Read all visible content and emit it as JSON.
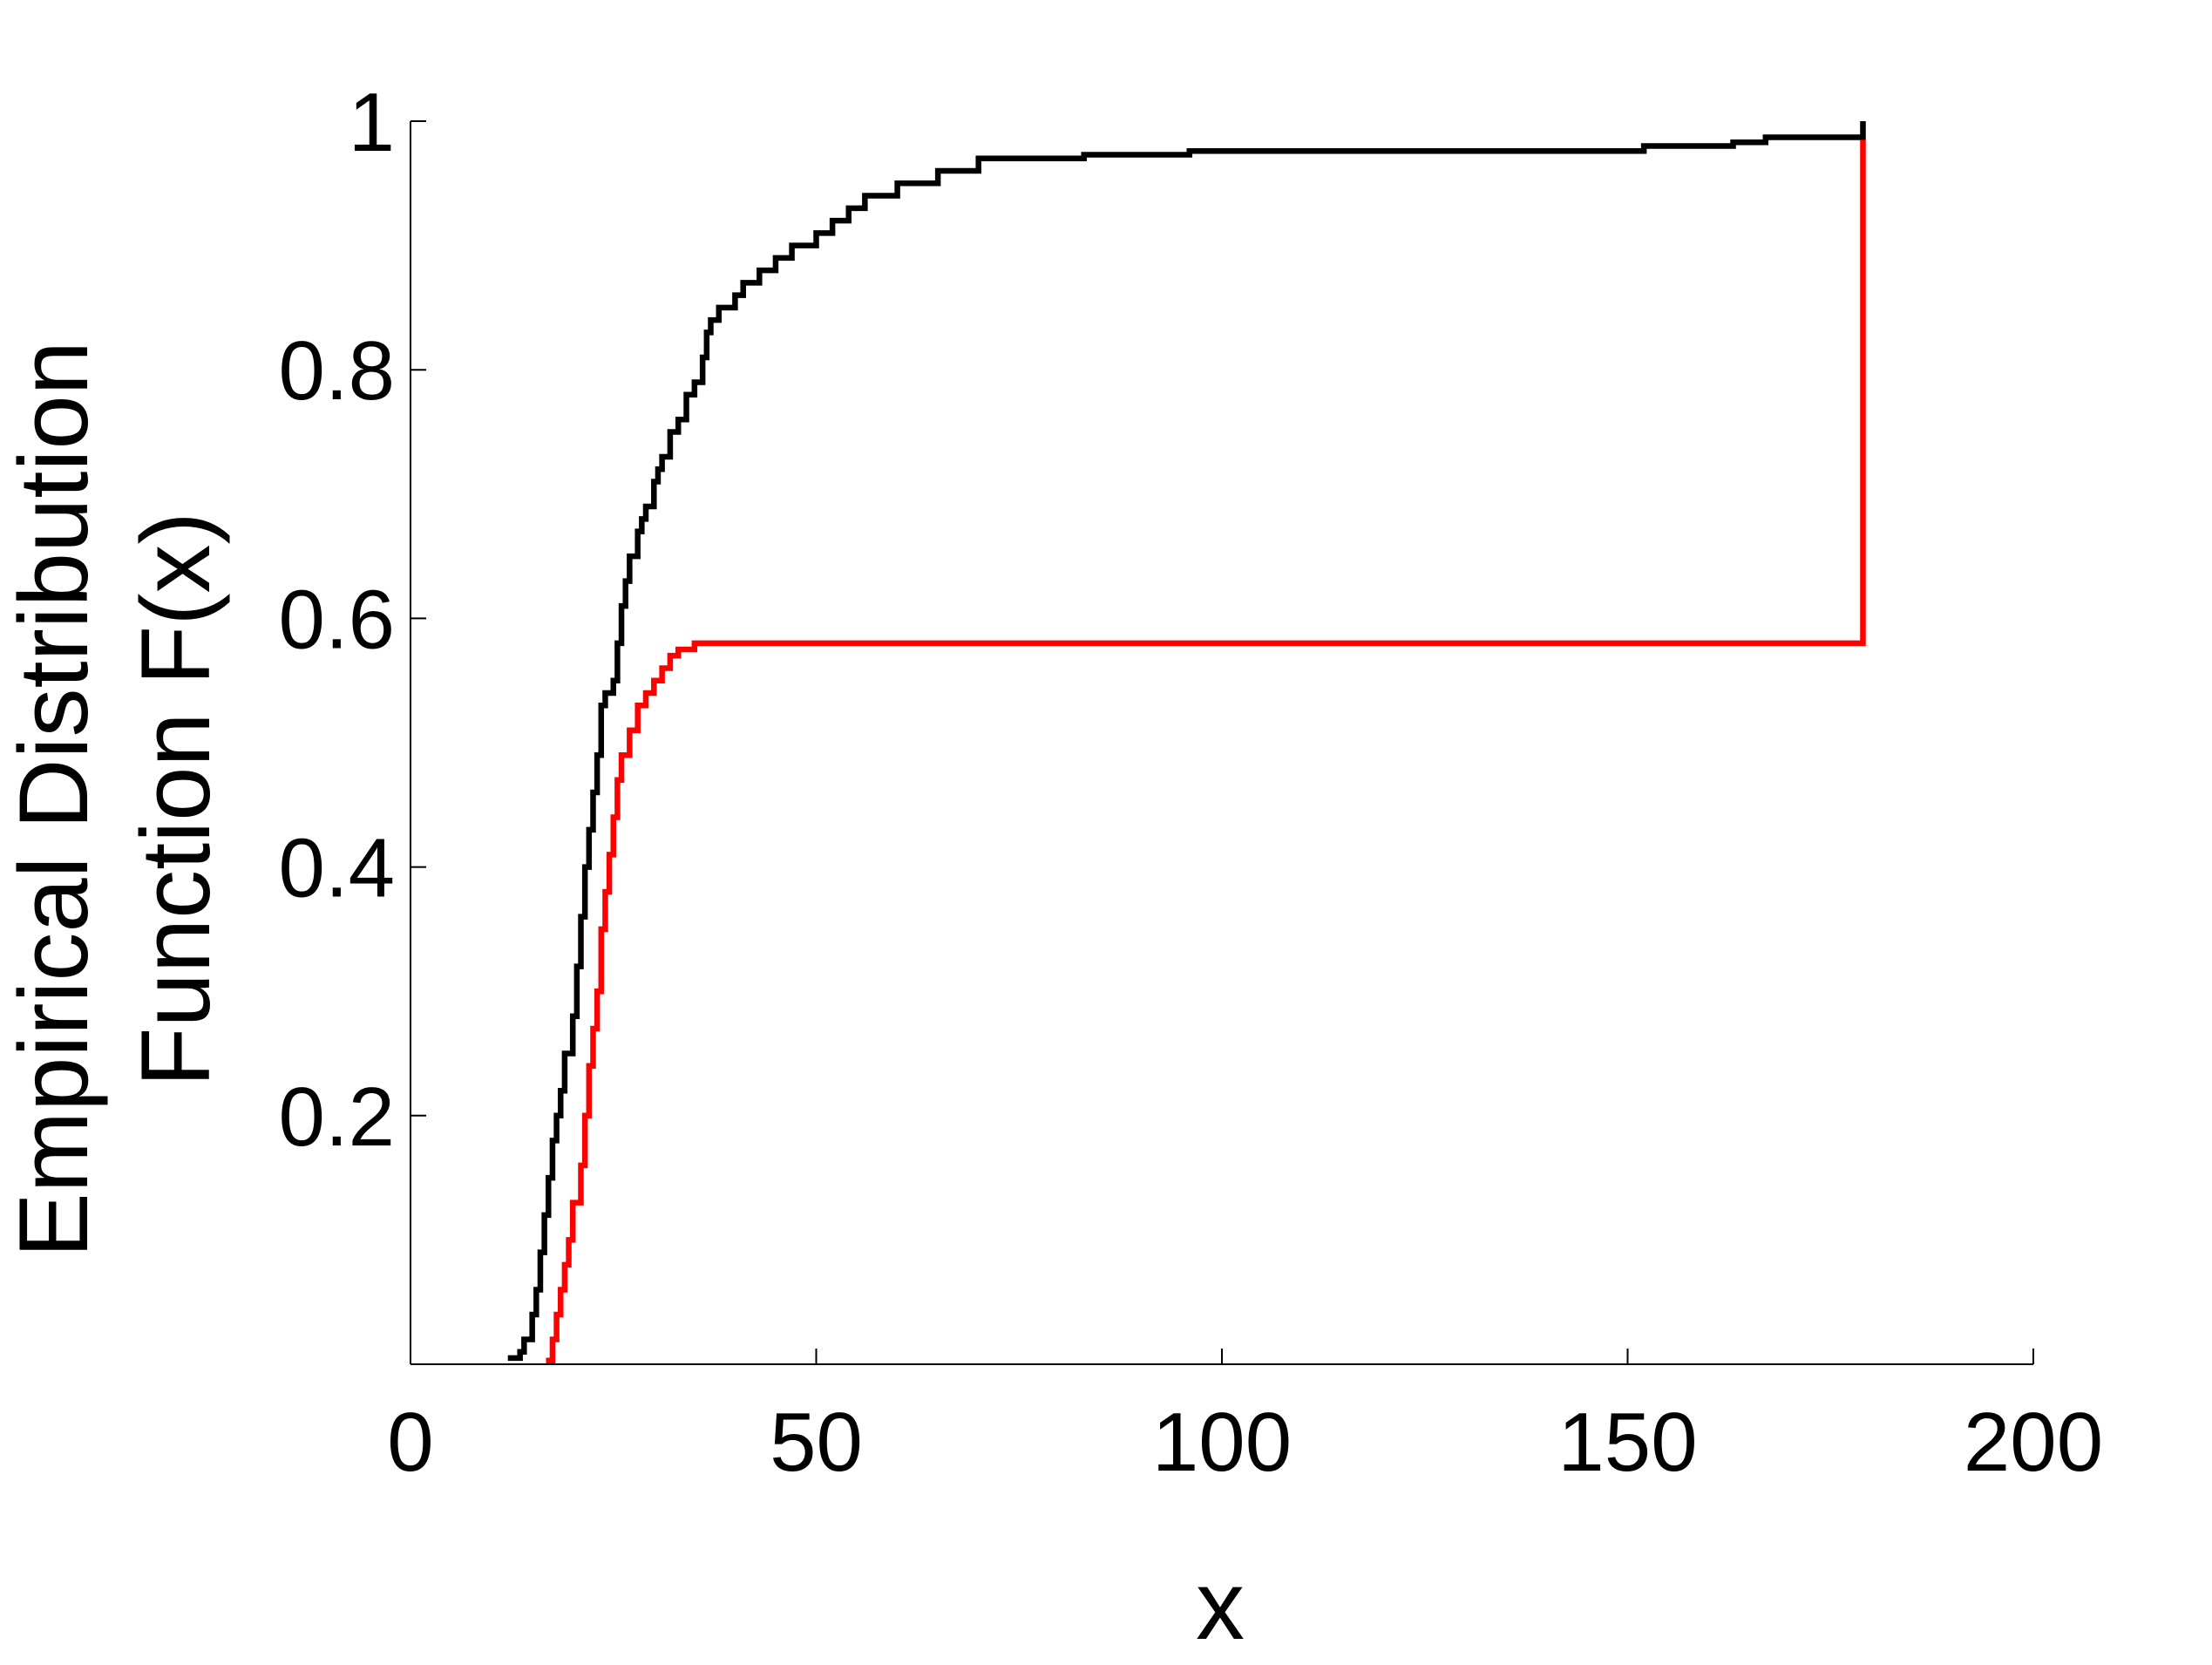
{
  "chart_data": {
    "type": "line",
    "step": "post",
    "xlabel": "x",
    "ylabel": [
      "Empirical Distribution",
      "Function F(x)"
    ],
    "xlim": [
      0,
      200
    ],
    "ylim": [
      0,
      1
    ],
    "xticks": [
      0,
      50,
      100,
      150,
      200
    ],
    "yticks": [
      0.2,
      0.4,
      0.6,
      0.8,
      1
    ],
    "grid": false,
    "series": [
      {
        "color": "#000000",
        "x": [
          12,
          13.5,
          14,
          15,
          15.5,
          16,
          16.5,
          17,
          17.5,
          18,
          18.5,
          19,
          20,
          20.5,
          21,
          21.5,
          22,
          22.5,
          23,
          23.5,
          24,
          25,
          25.5,
          26,
          26.5,
          27,
          28,
          28.5,
          29,
          30,
          30.5,
          31,
          32,
          33,
          34,
          35,
          36,
          36.5,
          37,
          38,
          40,
          41,
          43,
          45,
          47,
          50,
          52,
          54,
          56,
          60,
          65,
          70,
          83,
          96,
          152,
          163,
          167,
          179
        ],
        "values": [
          0.005,
          0.01,
          0.02,
          0.04,
          0.06,
          0.09,
          0.12,
          0.15,
          0.18,
          0.2,
          0.22,
          0.25,
          0.28,
          0.32,
          0.36,
          0.4,
          0.43,
          0.46,
          0.49,
          0.53,
          0.54,
          0.55,
          0.58,
          0.61,
          0.63,
          0.65,
          0.67,
          0.68,
          0.69,
          0.71,
          0.72,
          0.73,
          0.75,
          0.76,
          0.78,
          0.79,
          0.81,
          0.83,
          0.84,
          0.85,
          0.86,
          0.87,
          0.88,
          0.89,
          0.9,
          0.91,
          0.92,
          0.93,
          0.94,
          0.95,
          0.96,
          0.97,
          0.973,
          0.976,
          0.98,
          0.983,
          0.987,
          1.0
        ]
      },
      {
        "color": "#ff0000",
        "x": [
          16.7,
          17.5,
          18,
          18.5,
          19,
          19.5,
          20,
          21,
          21.5,
          22,
          22.5,
          23,
          23.5,
          24,
          24.5,
          25,
          25.5,
          26,
          27,
          28,
          29,
          30,
          31,
          32,
          33,
          35,
          179
        ],
        "values": [
          0.003,
          0.02,
          0.04,
          0.06,
          0.08,
          0.1,
          0.13,
          0.16,
          0.2,
          0.24,
          0.27,
          0.3,
          0.35,
          0.38,
          0.41,
          0.44,
          0.47,
          0.49,
          0.51,
          0.53,
          0.54,
          0.55,
          0.56,
          0.57,
          0.575,
          0.58,
          0.985
        ]
      }
    ]
  }
}
